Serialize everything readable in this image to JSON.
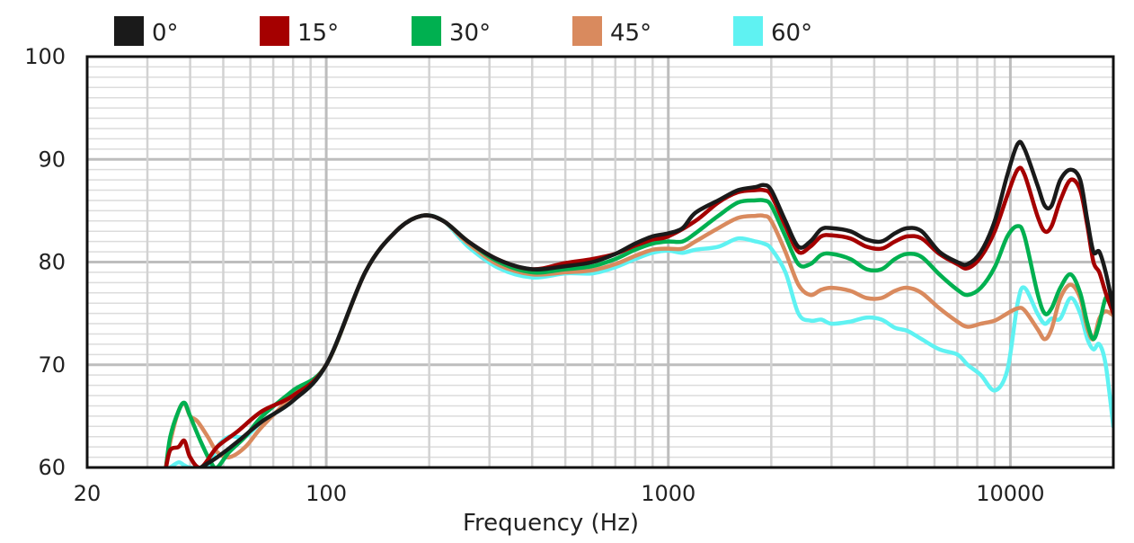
{
  "chart_data": {
    "type": "line",
    "title": "",
    "xlabel": "Frequency (Hz)",
    "ylabel": "",
    "x_scale": "log",
    "xlim": [
      20,
      20000
    ],
    "ylim": [
      60,
      100
    ],
    "grid": true,
    "legend_position": "top",
    "x_ticks": [
      {
        "value": 20,
        "label": "20"
      },
      {
        "value": 100,
        "label": "100"
      },
      {
        "value": 1000,
        "label": "1000"
      },
      {
        "value": 10000,
        "label": "10000"
      }
    ],
    "y_ticks": [
      {
        "value": 60,
        "label": "60"
      },
      {
        "value": 70,
        "label": "70"
      },
      {
        "value": 80,
        "label": "80"
      },
      {
        "value": 90,
        "label": "90"
      },
      {
        "value": 100,
        "label": "100"
      }
    ],
    "series": [
      {
        "name": "0°",
        "color": "#1a1a1a",
        "points": [
          [
            43,
            60
          ],
          [
            48,
            61
          ],
          [
            55,
            62.5
          ],
          [
            65,
            64.5
          ],
          [
            80,
            66.5
          ],
          [
            100,
            70
          ],
          [
            130,
            79
          ],
          [
            160,
            83
          ],
          [
            190,
            84.5
          ],
          [
            220,
            84
          ],
          [
            260,
            82
          ],
          [
            320,
            80.2
          ],
          [
            400,
            79.3
          ],
          [
            500,
            79.6
          ],
          [
            600,
            80
          ],
          [
            700,
            80.8
          ],
          [
            800,
            81.8
          ],
          [
            900,
            82.5
          ],
          [
            1000,
            82.8
          ],
          [
            1100,
            83.3
          ],
          [
            1200,
            84.8
          ],
          [
            1400,
            86
          ],
          [
            1600,
            87
          ],
          [
            1800,
            87.3
          ],
          [
            1900,
            87.5
          ],
          [
            2000,
            87
          ],
          [
            2200,
            84
          ],
          [
            2400,
            81.5
          ],
          [
            2600,
            82
          ],
          [
            2800,
            83.2
          ],
          [
            3000,
            83.3
          ],
          [
            3400,
            83
          ],
          [
            3800,
            82.2
          ],
          [
            4200,
            82
          ],
          [
            4600,
            82.8
          ],
          [
            5000,
            83.3
          ],
          [
            5500,
            83
          ],
          [
            6200,
            81
          ],
          [
            7000,
            80
          ],
          [
            7500,
            79.8
          ],
          [
            8200,
            81
          ],
          [
            9000,
            84
          ],
          [
            9800,
            88.5
          ],
          [
            10500,
            91.5
          ],
          [
            11000,
            91
          ],
          [
            12000,
            87.5
          ],
          [
            12600,
            85.5
          ],
          [
            13200,
            85.5
          ],
          [
            14000,
            88
          ],
          [
            15000,
            89
          ],
          [
            16000,
            88
          ],
          [
            16800,
            84
          ],
          [
            17500,
            81
          ],
          [
            18200,
            81
          ],
          [
            19000,
            79
          ],
          [
            20000,
            75.5
          ]
        ]
      },
      {
        "name": "15°",
        "color": "#a50000",
        "points": [
          [
            34,
            60
          ],
          [
            35,
            61.7
          ],
          [
            37,
            62
          ],
          [
            38.5,
            62.6
          ],
          [
            40,
            61
          ],
          [
            43,
            60
          ],
          [
            48,
            62
          ],
          [
            55,
            63.5
          ],
          [
            65,
            65.5
          ],
          [
            80,
            67
          ],
          [
            100,
            70
          ],
          [
            130,
            79
          ],
          [
            160,
            83
          ],
          [
            190,
            84.5
          ],
          [
            220,
            84
          ],
          [
            260,
            82
          ],
          [
            320,
            80.2
          ],
          [
            400,
            79.3
          ],
          [
            500,
            79.9
          ],
          [
            600,
            80.3
          ],
          [
            700,
            80.8
          ],
          [
            800,
            81.6
          ],
          [
            900,
            82.2
          ],
          [
            1000,
            82.5
          ],
          [
            1200,
            84
          ],
          [
            1400,
            85.8
          ],
          [
            1600,
            86.8
          ],
          [
            1800,
            87
          ],
          [
            1900,
            87
          ],
          [
            2000,
            86.5
          ],
          [
            2200,
            83.5
          ],
          [
            2400,
            81
          ],
          [
            2600,
            81.5
          ],
          [
            2800,
            82.5
          ],
          [
            3000,
            82.6
          ],
          [
            3400,
            82.3
          ],
          [
            3800,
            81.5
          ],
          [
            4200,
            81.3
          ],
          [
            4600,
            82
          ],
          [
            5000,
            82.5
          ],
          [
            5500,
            82.3
          ],
          [
            6200,
            80.8
          ],
          [
            7000,
            79.8
          ],
          [
            7500,
            79.4
          ],
          [
            8200,
            80.5
          ],
          [
            9000,
            83
          ],
          [
            9800,
            86.5
          ],
          [
            10500,
            89
          ],
          [
            11000,
            88.5
          ],
          [
            12000,
            84.5
          ],
          [
            12600,
            83
          ],
          [
            13200,
            83.5
          ],
          [
            14000,
            86
          ],
          [
            15000,
            88
          ],
          [
            16000,
            87
          ],
          [
            16800,
            83.5
          ],
          [
            17500,
            80
          ],
          [
            18200,
            79
          ],
          [
            19000,
            77
          ],
          [
            20000,
            75
          ]
        ]
      },
      {
        "name": "30°",
        "color": "#00b050",
        "points": [
          [
            34,
            60
          ],
          [
            35,
            63
          ],
          [
            37,
            65.5
          ],
          [
            38.5,
            66.3
          ],
          [
            40,
            65
          ],
          [
            43,
            62.5
          ],
          [
            46,
            60.5
          ],
          [
            48,
            60
          ],
          [
            52,
            61.5
          ],
          [
            58,
            63
          ],
          [
            65,
            65
          ],
          [
            80,
            67.5
          ],
          [
            100,
            70
          ],
          [
            130,
            79
          ],
          [
            160,
            83
          ],
          [
            190,
            84.5
          ],
          [
            220,
            84
          ],
          [
            260,
            82
          ],
          [
            320,
            80
          ],
          [
            400,
            79
          ],
          [
            500,
            79.3
          ],
          [
            600,
            79.6
          ],
          [
            700,
            80.3
          ],
          [
            800,
            81.2
          ],
          [
            900,
            81.8
          ],
          [
            1000,
            82
          ],
          [
            1100,
            82
          ],
          [
            1200,
            82.8
          ],
          [
            1400,
            84.5
          ],
          [
            1600,
            85.8
          ],
          [
            1800,
            86
          ],
          [
            1900,
            86
          ],
          [
            2000,
            85.5
          ],
          [
            2200,
            82.5
          ],
          [
            2400,
            79.8
          ],
          [
            2600,
            79.8
          ],
          [
            2800,
            80.7
          ],
          [
            3000,
            80.8
          ],
          [
            3400,
            80.3
          ],
          [
            3800,
            79.3
          ],
          [
            4200,
            79.3
          ],
          [
            4600,
            80.3
          ],
          [
            5000,
            80.8
          ],
          [
            5500,
            80.5
          ],
          [
            6200,
            78.8
          ],
          [
            7000,
            77.3
          ],
          [
            7500,
            76.8
          ],
          [
            8200,
            77.5
          ],
          [
            9000,
            79.5
          ],
          [
            9800,
            82.5
          ],
          [
            10500,
            83.5
          ],
          [
            11000,
            82.5
          ],
          [
            12000,
            77
          ],
          [
            12600,
            75
          ],
          [
            13200,
            75.5
          ],
          [
            14000,
            77.5
          ],
          [
            15000,
            78.8
          ],
          [
            16000,
            77
          ],
          [
            16800,
            74
          ],
          [
            17500,
            72.5
          ],
          [
            18200,
            74
          ],
          [
            19000,
            76.5
          ],
          [
            20000,
            76.8
          ]
        ]
      },
      {
        "name": "45°",
        "color": "#d98a5e",
        "points": [
          [
            34,
            60
          ],
          [
            35,
            62.5
          ],
          [
            37,
            65.5
          ],
          [
            38.5,
            66.2
          ],
          [
            40,
            65
          ],
          [
            42,
            64.5
          ],
          [
            45,
            63
          ],
          [
            48,
            61.5
          ],
          [
            52,
            61
          ],
          [
            58,
            62
          ],
          [
            65,
            64
          ],
          [
            80,
            67
          ],
          [
            100,
            70
          ],
          [
            130,
            79
          ],
          [
            160,
            83
          ],
          [
            190,
            84.5
          ],
          [
            220,
            84
          ],
          [
            260,
            81.8
          ],
          [
            320,
            79.7
          ],
          [
            400,
            78.8
          ],
          [
            500,
            79
          ],
          [
            600,
            79.2
          ],
          [
            700,
            79.8
          ],
          [
            800,
            80.6
          ],
          [
            900,
            81.2
          ],
          [
            1000,
            81.3
          ],
          [
            1100,
            81.3
          ],
          [
            1200,
            82
          ],
          [
            1400,
            83.3
          ],
          [
            1600,
            84.3
          ],
          [
            1800,
            84.5
          ],
          [
            1900,
            84.5
          ],
          [
            2000,
            84
          ],
          [
            2200,
            81
          ],
          [
            2400,
            77.8
          ],
          [
            2600,
            76.8
          ],
          [
            2800,
            77.3
          ],
          [
            3000,
            77.5
          ],
          [
            3400,
            77.2
          ],
          [
            3800,
            76.5
          ],
          [
            4200,
            76.5
          ],
          [
            4600,
            77.2
          ],
          [
            5000,
            77.5
          ],
          [
            5500,
            77
          ],
          [
            6200,
            75.5
          ],
          [
            7000,
            74.2
          ],
          [
            7500,
            73.7
          ],
          [
            8200,
            74
          ],
          [
            9000,
            74.3
          ],
          [
            9800,
            75
          ],
          [
            10500,
            75.5
          ],
          [
            11000,
            75.3
          ],
          [
            12000,
            73.5
          ],
          [
            12600,
            72.5
          ],
          [
            13200,
            73.5
          ],
          [
            14000,
            76.5
          ],
          [
            15000,
            77.8
          ],
          [
            16000,
            76.5
          ],
          [
            16800,
            73.5
          ],
          [
            17500,
            72.5
          ],
          [
            18200,
            74.5
          ],
          [
            19000,
            75.2
          ],
          [
            20000,
            74.8
          ]
        ]
      },
      {
        "name": "60°",
        "color": "#5ff2f2",
        "points": [
          [
            35,
            60
          ],
          [
            37,
            60.5
          ],
          [
            38.5,
            60.2
          ],
          [
            40,
            60
          ],
          [
            45,
            60
          ],
          [
            48,
            62
          ],
          [
            52,
            63
          ],
          [
            58,
            63
          ],
          [
            65,
            64.5
          ],
          [
            80,
            66.5
          ],
          [
            100,
            70
          ],
          [
            130,
            79
          ],
          [
            160,
            83
          ],
          [
            190,
            84.5
          ],
          [
            220,
            84
          ],
          [
            260,
            81.5
          ],
          [
            320,
            79.4
          ],
          [
            400,
            78.5
          ],
          [
            500,
            78.9
          ],
          [
            600,
            78.9
          ],
          [
            700,
            79.5
          ],
          [
            800,
            80.3
          ],
          [
            900,
            80.9
          ],
          [
            1000,
            81.1
          ],
          [
            1100,
            80.9
          ],
          [
            1200,
            81.2
          ],
          [
            1400,
            81.5
          ],
          [
            1600,
            82.3
          ],
          [
            1800,
            82
          ],
          [
            1900,
            81.8
          ],
          [
            2000,
            81.3
          ],
          [
            2200,
            79
          ],
          [
            2400,
            75
          ],
          [
            2600,
            74.3
          ],
          [
            2800,
            74.4
          ],
          [
            3000,
            74
          ],
          [
            3400,
            74.2
          ],
          [
            3800,
            74.6
          ],
          [
            4200,
            74.4
          ],
          [
            4600,
            73.6
          ],
          [
            5000,
            73.3
          ],
          [
            5500,
            72.5
          ],
          [
            6200,
            71.5
          ],
          [
            7000,
            71
          ],
          [
            7500,
            70
          ],
          [
            8200,
            69
          ],
          [
            9000,
            67.5
          ],
          [
            9800,
            69.5
          ],
          [
            10500,
            76
          ],
          [
            11000,
            77.5
          ],
          [
            12000,
            75
          ],
          [
            12600,
            74
          ],
          [
            13200,
            74.5
          ],
          [
            14000,
            74.5
          ],
          [
            15000,
            76.5
          ],
          [
            16000,
            75
          ],
          [
            16800,
            72.5
          ],
          [
            17500,
            71.5
          ],
          [
            18200,
            72
          ],
          [
            19000,
            70
          ],
          [
            20000,
            64
          ]
        ]
      }
    ]
  }
}
